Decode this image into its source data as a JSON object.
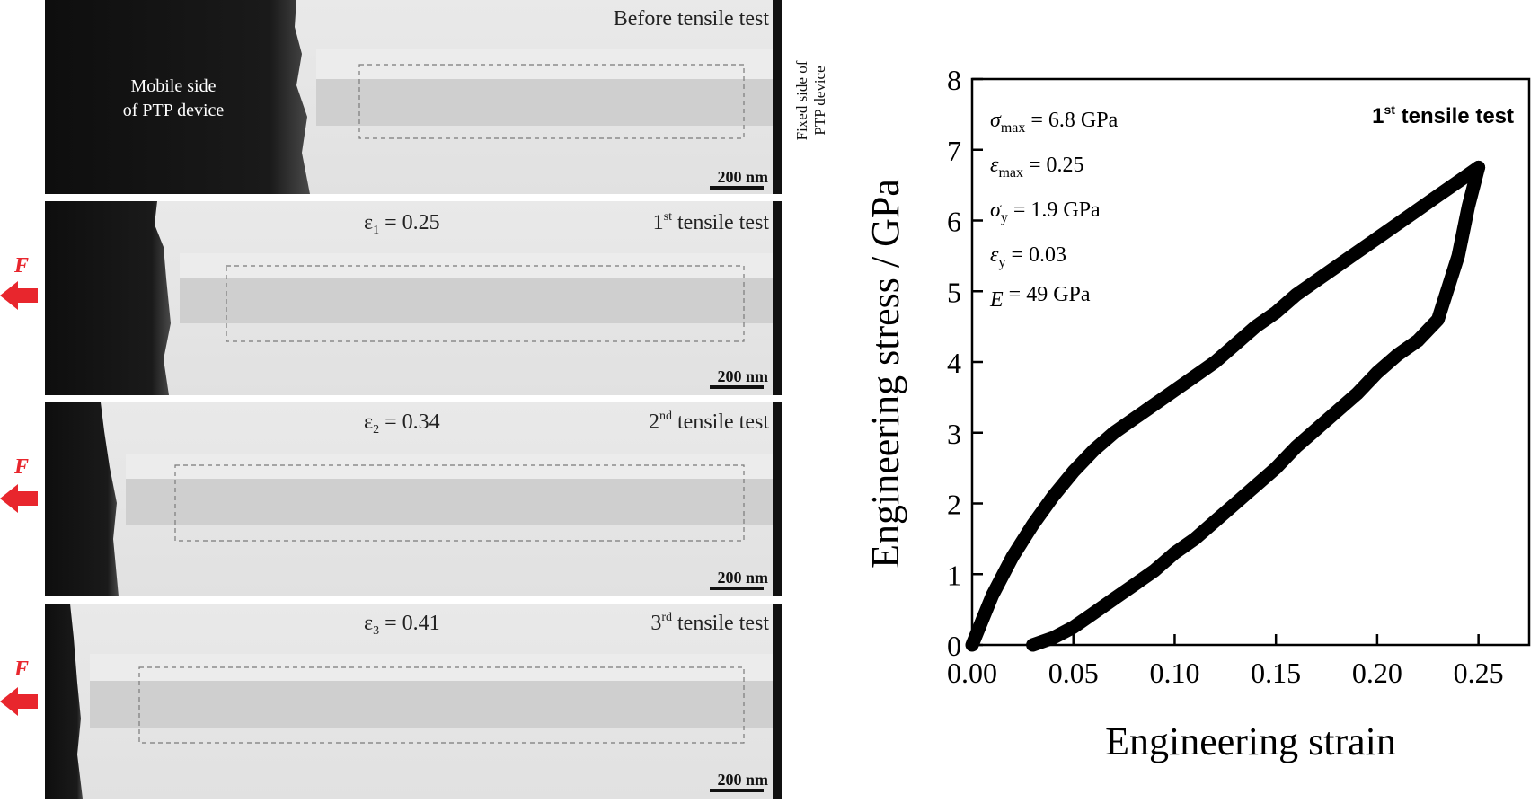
{
  "figure": {
    "panels": [
      {
        "caption": "Before tensile test",
        "strain_label": "",
        "scale_bar": "200 nm",
        "mobile_label": [
          "Mobile side",
          "of PTP device"
        ],
        "fixed_label": [
          "Fixed side of",
          "PTP device"
        ],
        "force_label": ""
      },
      {
        "caption_main": "1",
        "caption_sup": "st",
        "caption_tail": " tensile test",
        "eps_sym": "ε",
        "eps_sub": "1",
        "eps_value": " = 0.25",
        "scale_bar": "200 nm",
        "force_label": "F"
      },
      {
        "caption_main": "2",
        "caption_sup": "nd",
        "caption_tail": " tensile test",
        "eps_sym": "ε",
        "eps_sub": "2",
        "eps_value": " = 0.34",
        "scale_bar": "200 nm",
        "force_label": "F"
      },
      {
        "caption_main": "3",
        "caption_sup": "rd",
        "caption_tail": " tensile test",
        "eps_sym": "ε",
        "eps_sub": "3",
        "eps_value": " = 0.41",
        "scale_bar": "200 nm",
        "force_label": "F"
      }
    ],
    "colors": {
      "force_arrow": "#e8262d",
      "sample_bright": "#e6e6e6",
      "sample_gap": "#c9c9c9",
      "tip_dark": "#111111"
    }
  },
  "chart_data": {
    "type": "line",
    "title_main": "1",
    "title_sup": "st",
    "title_tail": " tensile test",
    "xlabel": "Engineering strain",
    "ylabel": "Engineering stress / GPa",
    "xlim": [
      0.0,
      0.275
    ],
    "ylim": [
      0,
      8
    ],
    "xticks": [
      "0.00",
      "0.05",
      "0.10",
      "0.15",
      "0.20",
      "0.25"
    ],
    "xtick_values": [
      0.0,
      0.05,
      0.1,
      0.15,
      0.2,
      0.25
    ],
    "yticks": [
      "0",
      "1",
      "2",
      "3",
      "4",
      "5",
      "6",
      "7",
      "8"
    ],
    "ytick_values": [
      0,
      1,
      2,
      3,
      4,
      5,
      6,
      7,
      8
    ],
    "grid": false,
    "annotations": [
      {
        "sym": "σ",
        "sub": "max",
        "rest": " = 6.8 GPa"
      },
      {
        "sym": "ε",
        "sub": "max",
        "rest": " = 0.25"
      },
      {
        "sym": "σ",
        "sub": "y",
        "rest": " = 1.9 GPa"
      },
      {
        "sym": "ε",
        "sub": "y",
        "rest": " = 0.03"
      },
      {
        "sym": "E",
        "sub": "",
        "rest": " = 49 GPa"
      }
    ],
    "series": [
      {
        "x": [
          0.0,
          0.01,
          0.02,
          0.03,
          0.04,
          0.05,
          0.06,
          0.07,
          0.08,
          0.09,
          0.1,
          0.11,
          0.12,
          0.13,
          0.14,
          0.15,
          0.16,
          0.17,
          0.18,
          0.19,
          0.2,
          0.21,
          0.22,
          0.23,
          0.24,
          0.25
        ],
        "y": [
          0.0,
          0.7,
          1.25,
          1.7,
          2.1,
          2.45,
          2.75,
          3.0,
          3.2,
          3.4,
          3.6,
          3.8,
          4.0,
          4.25,
          4.5,
          4.7,
          4.95,
          5.15,
          5.35,
          5.55,
          5.75,
          5.95,
          6.15,
          6.35,
          6.55,
          6.75
        ]
      },
      {
        "x": [
          0.25,
          0.245,
          0.24,
          0.23,
          0.22,
          0.21,
          0.2,
          0.19,
          0.18,
          0.17,
          0.16,
          0.15,
          0.14,
          0.13,
          0.12,
          0.11,
          0.1,
          0.09,
          0.08,
          0.07,
          0.06,
          0.05,
          0.04,
          0.03
        ],
        "y": [
          6.75,
          6.2,
          5.5,
          4.6,
          4.3,
          4.1,
          3.85,
          3.55,
          3.3,
          3.05,
          2.8,
          2.5,
          2.25,
          2.0,
          1.75,
          1.5,
          1.3,
          1.05,
          0.85,
          0.65,
          0.45,
          0.25,
          0.1,
          0.0
        ]
      }
    ]
  }
}
